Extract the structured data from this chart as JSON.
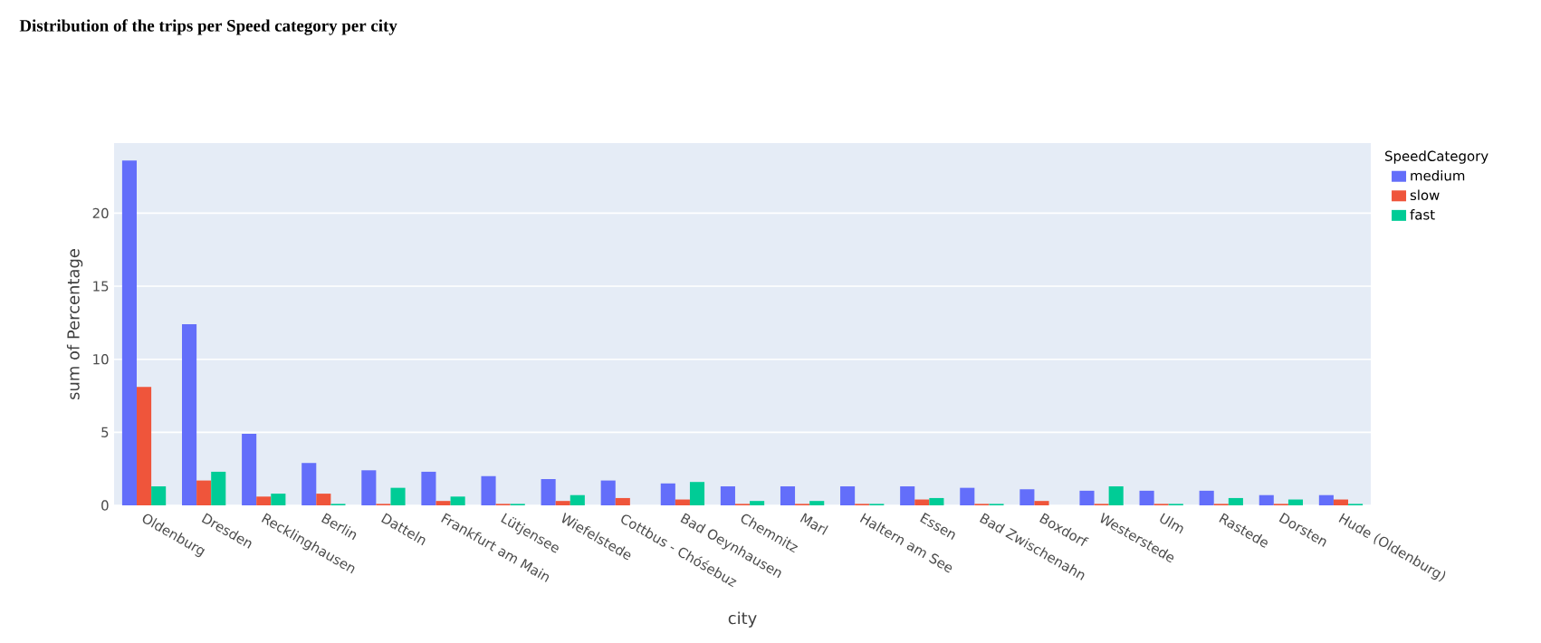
{
  "chart_data": {
    "type": "bar",
    "title": "Distribution of the trips per Speed category per city",
    "xlabel": "city",
    "ylabel": "sum of Percentage",
    "legend_title": "SpeedCategory",
    "categories": [
      "Oldenburg",
      "Dresden",
      "Recklinghausen",
      "Berlin",
      "Datteln",
      "Frankfurt am Main",
      "Lütjensee",
      "Wiefelstede",
      "Cottbus - Chóśebuz",
      "Bad Oeynhausen",
      "Chemnitz",
      "Marl",
      "Haltern am See",
      "Essen",
      "Bad Zwischenahn",
      "Boxdorf",
      "Westerstede",
      "Ulm",
      "Rastede",
      "Dorsten",
      "Hude (Oldenburg)"
    ],
    "series": [
      {
        "name": "medium",
        "color": "#636efa",
        "values": [
          23.6,
          12.4,
          4.9,
          2.9,
          2.4,
          2.3,
          2.0,
          1.8,
          1.7,
          1.5,
          1.3,
          1.3,
          1.3,
          1.3,
          1.2,
          1.1,
          1.0,
          1.0,
          1.0,
          0.7,
          0.7
        ]
      },
      {
        "name": "slow",
        "color": "#ef553b",
        "values": [
          8.1,
          1.7,
          0.6,
          0.8,
          0.1,
          0.3,
          0.1,
          0.3,
          0.5,
          0.4,
          0.1,
          0.1,
          0.1,
          0.4,
          0.1,
          0.3,
          0.1,
          0.1,
          0.1,
          0.1,
          0.4
        ]
      },
      {
        "name": "fast",
        "color": "#00cc96",
        "values": [
          1.3,
          2.3,
          0.8,
          0.1,
          1.2,
          0.6,
          0.1,
          0.7,
          0,
          1.6,
          0.3,
          0.3,
          0.1,
          0.5,
          0.1,
          0,
          1.3,
          0.1,
          0.5,
          0.4,
          0.1
        ]
      }
    ],
    "ylim": [
      0,
      24.8
    ],
    "yticks": [
      0,
      5,
      10,
      15,
      20
    ],
    "grid": "y",
    "legend": "top right"
  }
}
